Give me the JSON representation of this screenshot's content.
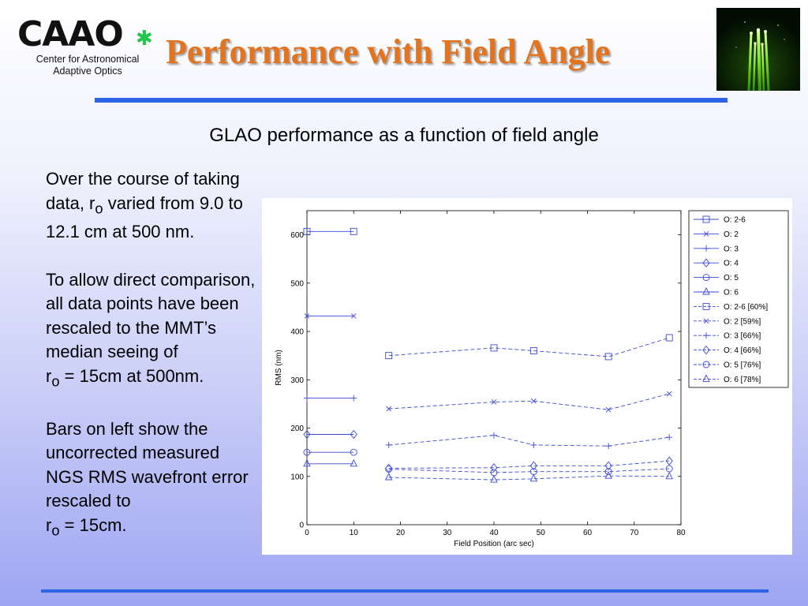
{
  "header": {
    "logo_text": "CAAO",
    "logo_line1": "Center for Astronomical",
    "logo_line2": "Adaptive Optics",
    "title": "Performance with Field Angle"
  },
  "subtitle": "GLAO performance as a function of field angle",
  "body": {
    "para1_a": "Over the course of taking data, r",
    "para1_sub": "o",
    "para1_b": " varied from 9.0 to 12.1 cm at 500 nm.",
    "para2_a": "To allow direct comparison, all data points have been rescaled to the MMT’s median seeing of",
    "para2_r": "r",
    "para2_sub": "o",
    "para2_b": " = 15cm at 500nm.",
    "para3_a": "Bars on left show the uncorrected measured NGS RMS wavefront error rescaled to",
    "para3_r": "r",
    "para3_sub": "o",
    "para3_b": " = 15cm."
  },
  "colors": {
    "title": "#e4731e",
    "rule": "#2d63e6",
    "series": "#3b48d6"
  },
  "chart_data": {
    "type": "line",
    "xlabel": "Field Position (arc sec)",
    "ylabel": "RMS (nm)",
    "xlim": [
      0,
      80
    ],
    "ylim": [
      0,
      650
    ],
    "xticks": [
      0,
      10,
      20,
      30,
      40,
      50,
      60,
      70,
      80
    ],
    "yticks": [
      0,
      100,
      200,
      300,
      400,
      500,
      600
    ],
    "legend_position": "right",
    "series": [
      {
        "name": "O: 2-6",
        "marker": "square",
        "dash": "solid",
        "x": [
          0,
          10
        ],
        "y": [
          607,
          607
        ]
      },
      {
        "name": "O: 2",
        "marker": "x",
        "dash": "solid",
        "x": [
          0,
          10
        ],
        "y": [
          432,
          432
        ]
      },
      {
        "name": "O: 3",
        "marker": "plus",
        "dash": "solid",
        "x": [
          0,
          10
        ],
        "y": [
          262,
          262
        ]
      },
      {
        "name": "O: 4",
        "marker": "diamond",
        "dash": "solid",
        "x": [
          0,
          10
        ],
        "y": [
          187,
          187
        ]
      },
      {
        "name": "O: 5",
        "marker": "circle",
        "dash": "solid",
        "x": [
          0,
          10
        ],
        "y": [
          150,
          150
        ]
      },
      {
        "name": "O: 6",
        "marker": "triangle",
        "dash": "solid",
        "x": [
          0,
          10
        ],
        "y": [
          126,
          126
        ]
      },
      {
        "name": "O: 2-6 [60%]",
        "marker": "square",
        "dash": "dashed",
        "x": [
          17.5,
          40,
          48.5,
          64.5,
          77.5
        ],
        "y": [
          350,
          366,
          360,
          348,
          387
        ]
      },
      {
        "name": "O: 2 [59%]",
        "marker": "x",
        "dash": "dashed",
        "x": [
          17.5,
          40,
          48.5,
          64.5,
          77.5
        ],
        "y": [
          240,
          254,
          256,
          238,
          271
        ]
      },
      {
        "name": "O: 3 [66%]",
        "marker": "plus",
        "dash": "dashed",
        "x": [
          17.5,
          40,
          48.5,
          64.5,
          77.5
        ],
        "y": [
          165,
          185,
          165,
          163,
          181
        ]
      },
      {
        "name": "O: 4 [66%]",
        "marker": "diamond",
        "dash": "dashed",
        "x": [
          17.5,
          40,
          48.5,
          64.5,
          77.5
        ],
        "y": [
          117,
          118,
          122,
          122,
          132
        ]
      },
      {
        "name": "O: 5 [76%]",
        "marker": "circle",
        "dash": "dashed",
        "x": [
          17.5,
          40,
          48.5,
          64.5,
          77.5
        ],
        "y": [
          115,
          108,
          110,
          110,
          116
        ]
      },
      {
        "name": "O: 6 [78%]",
        "marker": "triangle",
        "dash": "dashed",
        "x": [
          17.5,
          40,
          48.5,
          64.5,
          77.5
        ],
        "y": [
          98,
          93,
          95,
          101,
          100
        ]
      }
    ]
  }
}
